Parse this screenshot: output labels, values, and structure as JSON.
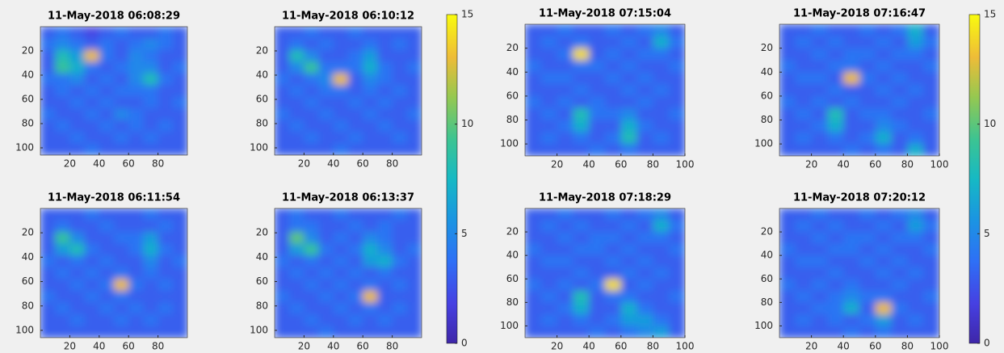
{
  "chart_data": [
    {
      "type": "heatmap",
      "title": "11-May-2018 06:08:29",
      "xlim": [
        0,
        100
      ],
      "ylim": [
        0,
        106
      ],
      "xticks": [
        20,
        40,
        60,
        80
      ],
      "yticks": [
        20,
        40,
        60,
        80,
        100
      ],
      "clim": [
        0,
        15
      ],
      "values": [
        [
          3,
          4,
          3,
          2,
          3,
          4,
          3,
          3,
          4,
          3
        ],
        [
          4,
          5,
          4,
          3,
          4,
          3,
          4,
          5,
          4,
          3
        ],
        [
          3,
          8,
          6,
          13,
          4,
          3,
          5,
          4,
          3,
          3
        ],
        [
          3,
          9,
          7,
          4,
          3,
          4,
          5,
          5,
          3,
          4
        ],
        [
          4,
          4,
          5,
          3,
          4,
          3,
          5,
          8,
          4,
          3
        ],
        [
          3,
          4,
          3,
          4,
          3,
          4,
          4,
          4,
          3,
          3
        ],
        [
          3,
          3,
          4,
          3,
          4,
          3,
          3,
          4,
          3,
          4
        ],
        [
          4,
          3,
          3,
          4,
          3,
          5,
          4,
          3,
          3,
          3
        ],
        [
          3,
          4,
          3,
          3,
          4,
          3,
          4,
          3,
          4,
          3
        ],
        [
          3,
          3,
          4,
          3,
          3,
          4,
          3,
          4,
          3,
          3
        ],
        [
          3,
          3,
          3,
          4,
          3,
          3,
          3,
          3,
          3,
          3
        ]
      ]
    },
    {
      "type": "heatmap",
      "title": "11-May-2018 06:10:12",
      "xlim": [
        0,
        100
      ],
      "ylim": [
        0,
        106
      ],
      "xticks": [
        20,
        40,
        60,
        80
      ],
      "yticks": [
        20,
        40,
        60,
        80,
        100
      ],
      "clim": [
        0,
        15
      ],
      "values": [
        [
          3,
          3,
          4,
          3,
          3,
          4,
          3,
          3,
          3,
          3
        ],
        [
          3,
          4,
          3,
          4,
          3,
          3,
          4,
          3,
          4,
          3
        ],
        [
          3,
          8,
          5,
          3,
          3,
          4,
          6,
          3,
          3,
          3
        ],
        [
          3,
          5,
          9,
          4,
          4,
          4,
          7,
          4,
          3,
          4
        ],
        [
          4,
          3,
          4,
          5,
          13,
          3,
          5,
          4,
          3,
          3
        ],
        [
          3,
          4,
          3,
          4,
          4,
          3,
          4,
          3,
          4,
          3
        ],
        [
          3,
          3,
          4,
          3,
          3,
          4,
          3,
          4,
          3,
          3
        ],
        [
          4,
          3,
          3,
          4,
          3,
          3,
          4,
          3,
          3,
          4
        ],
        [
          3,
          4,
          3,
          3,
          4,
          3,
          3,
          4,
          3,
          3
        ],
        [
          3,
          3,
          4,
          3,
          3,
          4,
          3,
          3,
          4,
          3
        ],
        [
          3,
          3,
          3,
          3,
          4,
          3,
          3,
          3,
          3,
          3
        ]
      ]
    },
    {
      "type": "heatmap",
      "title": "11-May-2018 06:11:54",
      "xlim": [
        0,
        100
      ],
      "ylim": [
        0,
        106
      ],
      "xticks": [
        20,
        40,
        60,
        80
      ],
      "yticks": [
        20,
        40,
        60,
        80,
        100
      ],
      "clim": [
        0,
        15
      ],
      "values": [
        [
          3,
          3,
          3,
          4,
          3,
          3,
          3,
          4,
          3,
          3
        ],
        [
          3,
          4,
          3,
          3,
          4,
          3,
          3,
          3,
          4,
          3
        ],
        [
          3,
          9,
          5,
          3,
          3,
          4,
          4,
          6,
          3,
          3
        ],
        [
          3,
          6,
          8,
          4,
          3,
          3,
          4,
          7,
          4,
          3
        ],
        [
          4,
          3,
          4,
          3,
          4,
          3,
          3,
          5,
          3,
          4
        ],
        [
          3,
          4,
          3,
          4,
          3,
          4,
          3,
          4,
          3,
          3
        ],
        [
          3,
          3,
          4,
          3,
          4,
          13,
          4,
          3,
          4,
          3
        ],
        [
          4,
          3,
          3,
          4,
          3,
          4,
          3,
          3,
          3,
          3
        ],
        [
          3,
          4,
          3,
          3,
          4,
          3,
          4,
          3,
          4,
          3
        ],
        [
          3,
          3,
          4,
          3,
          3,
          4,
          3,
          4,
          3,
          3
        ],
        [
          3,
          3,
          3,
          3,
          3,
          3,
          3,
          3,
          3,
          3
        ]
      ]
    },
    {
      "type": "heatmap",
      "title": "11-May-2018 06:13:37",
      "xlim": [
        0,
        100
      ],
      "ylim": [
        0,
        106
      ],
      "xticks": [
        20,
        40,
        60,
        80
      ],
      "yticks": [
        20,
        40,
        60,
        80,
        100
      ],
      "clim": [
        0,
        15
      ],
      "values": [
        [
          3,
          4,
          3,
          3,
          4,
          3,
          3,
          3,
          4,
          3
        ],
        [
          3,
          4,
          4,
          3,
          3,
          4,
          3,
          4,
          3,
          3
        ],
        [
          3,
          10,
          5,
          3,
          4,
          3,
          5,
          4,
          3,
          3
        ],
        [
          3,
          6,
          9,
          4,
          3,
          4,
          7,
          5,
          3,
          4
        ],
        [
          4,
          3,
          4,
          3,
          4,
          3,
          6,
          7,
          4,
          3
        ],
        [
          3,
          4,
          3,
          4,
          3,
          4,
          3,
          4,
          3,
          3
        ],
        [
          3,
          3,
          4,
          3,
          4,
          3,
          4,
          3,
          4,
          3
        ],
        [
          4,
          3,
          3,
          4,
          3,
          4,
          13,
          3,
          3,
          3
        ],
        [
          3,
          4,
          3,
          3,
          4,
          3,
          4,
          3,
          4,
          3
        ],
        [
          3,
          3,
          4,
          3,
          3,
          4,
          3,
          4,
          3,
          3
        ],
        [
          3,
          3,
          3,
          4,
          3,
          3,
          3,
          3,
          3,
          3
        ]
      ]
    },
    {
      "type": "colorbar",
      "clim": [
        0,
        15
      ],
      "ticks": [
        0,
        5,
        10,
        15
      ]
    },
    {
      "type": "heatmap",
      "title": "11-May-2018 07:15:04",
      "xlim": [
        0,
        100
      ],
      "ylim": [
        0,
        110
      ],
      "xticks": [
        20,
        40,
        60,
        80,
        100
      ],
      "yticks": [
        20,
        40,
        60,
        80,
        100
      ],
      "clim": [
        0,
        15
      ],
      "values": [
        [
          3,
          3,
          4,
          3,
          3,
          4,
          3,
          4,
          5,
          3
        ],
        [
          3,
          4,
          3,
          4,
          3,
          3,
          4,
          3,
          7,
          4
        ],
        [
          3,
          3,
          4,
          14,
          3,
          4,
          3,
          4,
          4,
          3
        ],
        [
          4,
          3,
          3,
          4,
          4,
          3,
          4,
          3,
          3,
          4
        ],
        [
          3,
          4,
          4,
          3,
          3,
          4,
          3,
          4,
          3,
          3
        ],
        [
          3,
          3,
          3,
          4,
          3,
          3,
          4,
          3,
          4,
          3
        ],
        [
          4,
          3,
          4,
          3,
          4,
          3,
          3,
          4,
          3,
          3
        ],
        [
          3,
          4,
          3,
          8,
          4,
          4,
          5,
          3,
          3,
          4
        ],
        [
          3,
          3,
          4,
          7,
          3,
          3,
          7,
          4,
          3,
          3
        ],
        [
          3,
          4,
          3,
          4,
          3,
          4,
          8,
          3,
          4,
          3
        ],
        [
          3,
          3,
          3,
          3,
          4,
          3,
          4,
          3,
          3,
          3
        ]
      ]
    },
    {
      "type": "heatmap",
      "title": "11-May-2018 07:16:47",
      "xlim": [
        0,
        100
      ],
      "ylim": [
        0,
        110
      ],
      "xticks": [
        20,
        40,
        60,
        80,
        100
      ],
      "yticks": [
        20,
        40,
        60,
        80,
        100
      ],
      "clim": [
        0,
        15
      ],
      "values": [
        [
          3,
          3,
          4,
          3,
          3,
          4,
          3,
          4,
          7,
          3
        ],
        [
          3,
          4,
          3,
          4,
          3,
          3,
          4,
          3,
          6,
          4
        ],
        [
          3,
          3,
          4,
          3,
          4,
          4,
          3,
          4,
          4,
          3
        ],
        [
          4,
          3,
          3,
          4,
          4,
          3,
          4,
          3,
          3,
          4
        ],
        [
          3,
          4,
          4,
          3,
          13,
          4,
          3,
          4,
          3,
          3
        ],
        [
          3,
          3,
          3,
          4,
          3,
          3,
          4,
          3,
          4,
          3
        ],
        [
          4,
          3,
          4,
          3,
          4,
          3,
          3,
          4,
          3,
          3
        ],
        [
          3,
          4,
          3,
          8,
          3,
          4,
          4,
          3,
          3,
          4
        ],
        [
          3,
          3,
          4,
          7,
          3,
          3,
          5,
          4,
          3,
          3
        ],
        [
          3,
          4,
          3,
          4,
          3,
          4,
          7,
          3,
          4,
          3
        ],
        [
          3,
          3,
          3,
          3,
          4,
          3,
          4,
          3,
          7,
          3
        ]
      ]
    },
    {
      "type": "heatmap",
      "title": "11-May-2018 07:18:29",
      "xlim": [
        0,
        100
      ],
      "ylim": [
        0,
        110
      ],
      "xticks": [
        20,
        40,
        60,
        80,
        100
      ],
      "yticks": [
        20,
        40,
        60,
        80,
        100
      ],
      "clim": [
        0,
        15
      ],
      "values": [
        [
          3,
          3,
          4,
          3,
          3,
          4,
          3,
          4,
          5,
          3
        ],
        [
          3,
          4,
          3,
          4,
          3,
          3,
          4,
          3,
          7,
          4
        ],
        [
          3,
          3,
          4,
          3,
          4,
          4,
          3,
          4,
          4,
          3
        ],
        [
          4,
          3,
          3,
          4,
          4,
          3,
          4,
          3,
          3,
          4
        ],
        [
          3,
          4,
          4,
          3,
          3,
          4,
          3,
          4,
          3,
          3
        ],
        [
          3,
          3,
          3,
          4,
          3,
          3,
          4,
          3,
          4,
          3
        ],
        [
          4,
          3,
          4,
          3,
          4,
          14,
          3,
          4,
          3,
          3
        ],
        [
          3,
          4,
          3,
          8,
          3,
          4,
          4,
          3,
          3,
          4
        ],
        [
          3,
          3,
          4,
          7,
          3,
          3,
          7,
          4,
          3,
          3
        ],
        [
          3,
          4,
          3,
          4,
          3,
          4,
          6,
          6,
          4,
          3
        ],
        [
          3,
          3,
          3,
          3,
          4,
          3,
          4,
          5,
          6,
          3
        ]
      ]
    },
    {
      "type": "heatmap",
      "title": "11-May-2018 07:20:12",
      "xlim": [
        0,
        100
      ],
      "ylim": [
        0,
        110
      ],
      "xticks": [
        20,
        40,
        60,
        80,
        100
      ],
      "yticks": [
        20,
        40,
        60,
        80,
        100
      ],
      "clim": [
        0,
        15
      ],
      "values": [
        [
          3,
          3,
          4,
          3,
          3,
          4,
          3,
          4,
          5,
          3
        ],
        [
          3,
          4,
          3,
          4,
          3,
          3,
          4,
          3,
          6,
          4
        ],
        [
          3,
          3,
          4,
          3,
          4,
          4,
          3,
          4,
          4,
          3
        ],
        [
          4,
          3,
          3,
          4,
          4,
          3,
          4,
          3,
          3,
          4
        ],
        [
          3,
          4,
          4,
          3,
          3,
          4,
          3,
          4,
          3,
          3
        ],
        [
          3,
          3,
          3,
          4,
          3,
          3,
          4,
          3,
          4,
          3
        ],
        [
          4,
          3,
          4,
          3,
          4,
          3,
          3,
          4,
          3,
          3
        ],
        [
          3,
          4,
          3,
          4,
          5,
          4,
          4,
          3,
          3,
          4
        ],
        [
          3,
          3,
          4,
          4,
          7,
          3,
          13,
          4,
          3,
          3
        ],
        [
          3,
          4,
          3,
          4,
          3,
          4,
          6,
          3,
          4,
          3
        ],
        [
          3,
          3,
          3,
          3,
          4,
          3,
          4,
          3,
          3,
          3
        ]
      ]
    },
    {
      "type": "colorbar",
      "clim": [
        0,
        15
      ],
      "ticks": [
        0,
        5,
        10,
        15
      ]
    }
  ]
}
